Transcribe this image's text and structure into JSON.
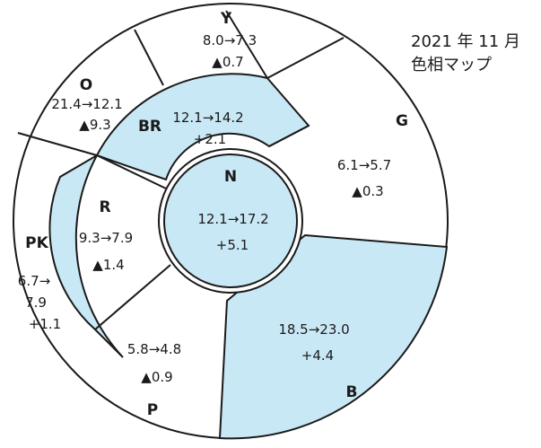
{
  "title": {
    "line1": "2021 年 11 月",
    "line2": "色相マップ"
  },
  "colors": {
    "highlight": "#c9e8f6",
    "stroke": "#1a1a1a",
    "plain": "#ffffff"
  },
  "segments": {
    "Y": {
      "label": "Y",
      "change": "8.0→7.3",
      "delta": "▲0.7",
      "highlighted": false
    },
    "O": {
      "label": "O",
      "change": "21.4→12.1",
      "delta": "▲9.3",
      "highlighted": false
    },
    "G": {
      "label": "G",
      "change": "6.1→5.7",
      "delta": "▲0.3",
      "highlighted": false
    },
    "BR": {
      "label": "BR",
      "change": "12.1→14.2",
      "delta": "+2.1",
      "highlighted": true
    },
    "R": {
      "label": "R",
      "change": "9.3→7.9",
      "delta": "▲1.4",
      "highlighted": false
    },
    "PK": {
      "label": "PK",
      "change_a": "6.7→",
      "change_b": "7.9",
      "delta": "+1.1",
      "highlighted": true
    },
    "P": {
      "label": "P",
      "change": "5.8→4.8",
      "delta": "▲0.9",
      "highlighted": false
    },
    "B": {
      "label": "B",
      "change": "18.5→23.0",
      "delta": "+4.4",
      "highlighted": true
    },
    "N": {
      "label": "N",
      "change": "12.1→17.2",
      "delta": "+5.1",
      "highlighted": true
    }
  }
}
